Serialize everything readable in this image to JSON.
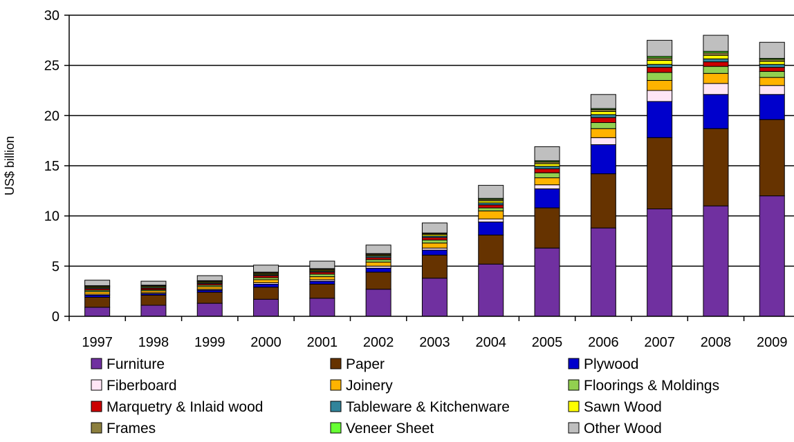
{
  "chart_data": {
    "type": "bar",
    "stacked": true,
    "ylabel": "US$ billion",
    "xlabel": "",
    "ylim": [
      0,
      30
    ],
    "yticks": [
      0,
      5,
      10,
      15,
      20,
      25,
      30
    ],
    "grid": true,
    "legend_position": "bottom",
    "categories": [
      "1997",
      "1998",
      "1999",
      "2000",
      "2001",
      "2002",
      "2003",
      "2004",
      "2005",
      "2006",
      "2007",
      "2008",
      "2009"
    ],
    "series": [
      {
        "name": "Furniture",
        "color": "#7030A0",
        "values": [
          0.9,
          1.1,
          1.3,
          1.7,
          1.8,
          2.7,
          3.8,
          5.2,
          6.8,
          8.8,
          10.7,
          11.0,
          12.0
        ]
      },
      {
        "name": "Paper",
        "color": "#663300",
        "values": [
          1.0,
          1.0,
          1.1,
          1.2,
          1.4,
          1.7,
          2.3,
          2.9,
          4.0,
          5.4,
          7.1,
          7.7,
          7.6
        ]
      },
      {
        "name": "Plywood",
        "color": "#0000CC",
        "values": [
          0.2,
          0.15,
          0.2,
          0.3,
          0.3,
          0.4,
          0.5,
          1.3,
          1.9,
          2.9,
          3.6,
          3.4,
          2.5
        ]
      },
      {
        "name": "Fiberboard",
        "color": "#FFE5F5",
        "values": [
          0.1,
          0.1,
          0.1,
          0.15,
          0.15,
          0.2,
          0.2,
          0.3,
          0.4,
          0.7,
          1.1,
          1.1,
          0.9
        ]
      },
      {
        "name": "Joinery",
        "color": "#FFB300",
        "values": [
          0.25,
          0.2,
          0.25,
          0.3,
          0.3,
          0.4,
          0.5,
          0.8,
          0.7,
          0.9,
          1.0,
          1.0,
          0.8
        ]
      },
      {
        "name": "Floorings & Moldings",
        "color": "#92D050",
        "values": [
          0.15,
          0.1,
          0.15,
          0.2,
          0.25,
          0.25,
          0.3,
          0.3,
          0.5,
          0.6,
          0.8,
          0.7,
          0.6
        ]
      },
      {
        "name": "Marquetry & Inlaid wood",
        "color": "#CC0000",
        "values": [
          0.15,
          0.15,
          0.15,
          0.2,
          0.2,
          0.2,
          0.25,
          0.3,
          0.4,
          0.5,
          0.5,
          0.45,
          0.4
        ]
      },
      {
        "name": "Tableware & Kitchenware",
        "color": "#31849B",
        "values": [
          0.1,
          0.1,
          0.1,
          0.1,
          0.1,
          0.15,
          0.15,
          0.2,
          0.25,
          0.3,
          0.3,
          0.3,
          0.3
        ]
      },
      {
        "name": "Sawn Wood",
        "color": "#FFFF00",
        "values": [
          0.1,
          0.1,
          0.1,
          0.1,
          0.1,
          0.1,
          0.15,
          0.2,
          0.25,
          0.3,
          0.4,
          0.35,
          0.3
        ]
      },
      {
        "name": "Frames",
        "color": "#8C7F3E",
        "values": [
          0.05,
          0.05,
          0.05,
          0.1,
          0.1,
          0.1,
          0.1,
          0.15,
          0.2,
          0.2,
          0.25,
          0.25,
          0.2
        ]
      },
      {
        "name": "Veneer Sheet",
        "color": "#66FF33",
        "values": [
          0.05,
          0.05,
          0.05,
          0.05,
          0.05,
          0.05,
          0.05,
          0.1,
          0.1,
          0.1,
          0.15,
          0.15,
          0.1
        ]
      },
      {
        "name": "Other Wood",
        "color": "#BFBFBF",
        "values": [
          0.55,
          0.4,
          0.5,
          0.7,
          0.75,
          0.85,
          1.0,
          1.3,
          1.4,
          1.4,
          1.6,
          1.6,
          1.6
        ]
      }
    ]
  }
}
